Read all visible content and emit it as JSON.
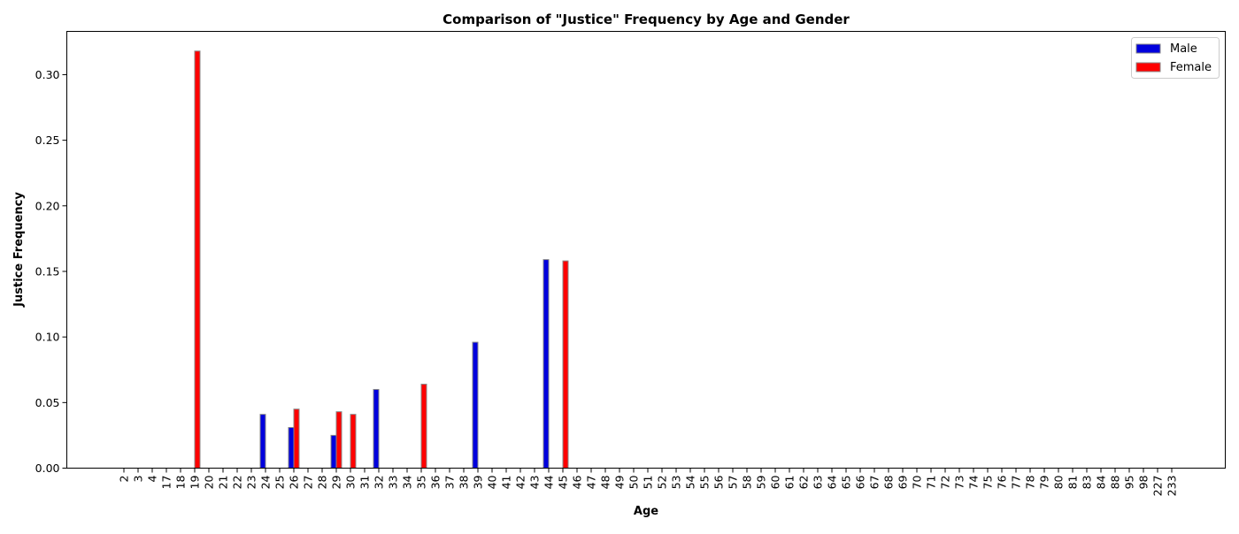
{
  "chart_data": {
    "type": "bar",
    "title": "Comparison of \"Justice\" Frequency by Age and Gender",
    "xlabel": "Age",
    "ylabel": "Justice Frequency",
    "ylim": [
      0,
      0.333
    ],
    "yticks": [
      "0.00",
      "0.05",
      "0.10",
      "0.15",
      "0.20",
      "0.25",
      "0.30"
    ],
    "legend_position": "top-right",
    "categories": [
      "2",
      "3",
      "4",
      "17",
      "18",
      "19",
      "20",
      "21",
      "22",
      "23",
      "24",
      "25",
      "26",
      "27",
      "28",
      "29",
      "30",
      "31",
      "32",
      "33",
      "34",
      "35",
      "36",
      "37",
      "38",
      "39",
      "40",
      "41",
      "42",
      "43",
      "44",
      "45",
      "46",
      "47",
      "48",
      "49",
      "50",
      "51",
      "52",
      "53",
      "54",
      "55",
      "56",
      "57",
      "58",
      "59",
      "60",
      "61",
      "62",
      "63",
      "64",
      "65",
      "66",
      "67",
      "68",
      "69",
      "70",
      "71",
      "72",
      "73",
      "74",
      "75",
      "76",
      "77",
      "78",
      "79",
      "80",
      "81",
      "83",
      "84",
      "88",
      "95",
      "98",
      "227",
      "233"
    ],
    "series": [
      {
        "name": "Male",
        "color": "#0000dd",
        "values": [
          0,
          0,
          0,
          0,
          0,
          0,
          0,
          0,
          0,
          0,
          0.041,
          0,
          0.031,
          0,
          0,
          0.025,
          0,
          0,
          0.06,
          0,
          0,
          0,
          0,
          0,
          0,
          0.096,
          0,
          0,
          0,
          0,
          0.159,
          0,
          0,
          0,
          0,
          0,
          0,
          0,
          0,
          0,
          0,
          0,
          0,
          0,
          0,
          0,
          0,
          0,
          0,
          0,
          0,
          0,
          0,
          0,
          0,
          0,
          0,
          0,
          0,
          0,
          0,
          0,
          0,
          0,
          0,
          0,
          0,
          0,
          0,
          0,
          0,
          0,
          0,
          0,
          0
        ]
      },
      {
        "name": "Female",
        "color": "#ff0000",
        "values": [
          0,
          0,
          0,
          0,
          0,
          0.318,
          0,
          0,
          0,
          0,
          0,
          0,
          0.045,
          0,
          0,
          0.043,
          0.041,
          0,
          0,
          0,
          0,
          0.064,
          0,
          0,
          0,
          0,
          0,
          0,
          0,
          0,
          0,
          0.158,
          0,
          0,
          0,
          0,
          0,
          0,
          0,
          0,
          0,
          0,
          0,
          0,
          0,
          0,
          0,
          0,
          0,
          0,
          0,
          0,
          0,
          0,
          0,
          0,
          0,
          0,
          0,
          0,
          0,
          0,
          0,
          0,
          0,
          0,
          0,
          0,
          0,
          0,
          0,
          0,
          0,
          0,
          0
        ]
      }
    ]
  }
}
